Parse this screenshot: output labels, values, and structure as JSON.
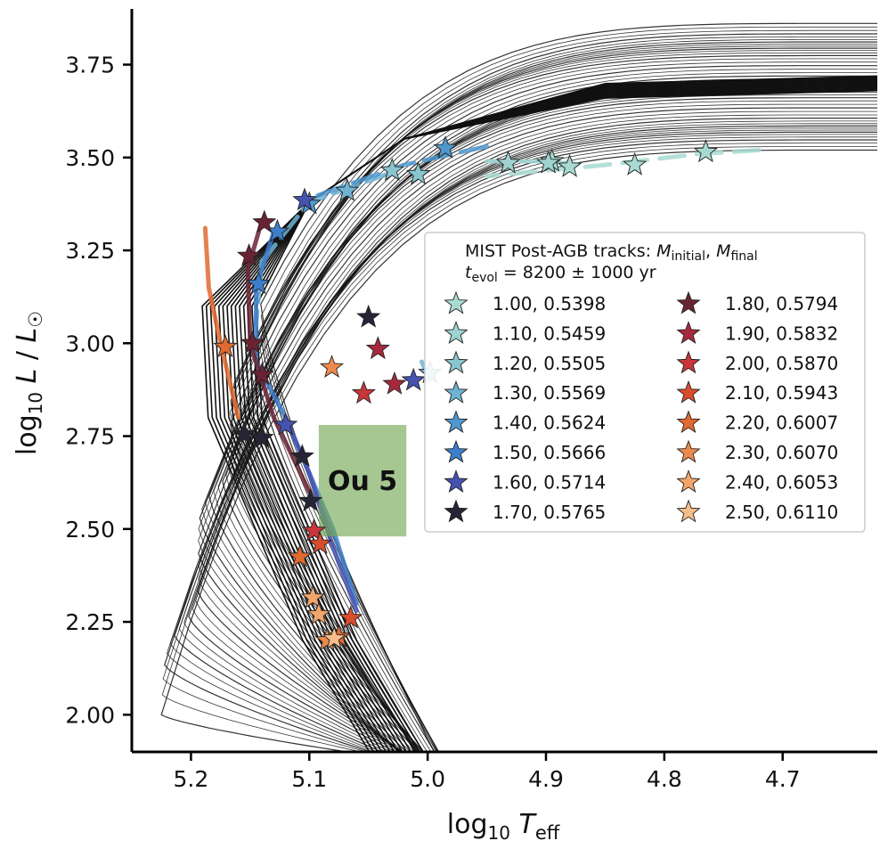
{
  "chart_data": {
    "type": "scatter",
    "xlabel": "log10 Teff",
    "ylabel": "log10 L / L☉",
    "xlim": [
      5.25,
      4.62
    ],
    "ylim": [
      1.9,
      3.9
    ],
    "x_inverted": true,
    "xticks": [
      5.2,
      5.1,
      5.0,
      4.9,
      4.8,
      4.7
    ],
    "xtick_labels": [
      "5.2",
      "5.1",
      "5.0",
      "4.9",
      "4.8",
      "4.7"
    ],
    "yticks": [
      2.0,
      2.25,
      2.5,
      2.75,
      3.0,
      3.25,
      3.5,
      3.75
    ],
    "ytick_labels": [
      "2.00",
      "2.25",
      "2.50",
      "2.75",
      "3.00",
      "3.25",
      "3.50",
      "3.75"
    ],
    "legend": {
      "title_line1_prefix": "MIST Post-AGB tracks: ",
      "title_m": "M",
      "title_initial": "initial",
      "title_sep": ", ",
      "title_final": "final",
      "title_t": "t",
      "title_evol": "evol",
      "title_line2_suffix": " = 8200 ± 1000 yr",
      "position": "right"
    },
    "region": {
      "label": "Ou 5",
      "x_range": [
        5.092,
        5.018
      ],
      "y_range": [
        2.48,
        2.78
      ],
      "color": "#76a957"
    },
    "series": [
      {
        "name": "1.00, 0.5398",
        "color": "#a8dad2",
        "points": [
          [
            4.765,
            3.515
          ],
          [
            4.825,
            3.48
          ],
          [
            4.88,
            3.475
          ],
          [
            4.895,
            3.49
          ]
        ]
      },
      {
        "name": "1.10, 0.5459",
        "color": "#9ed3d1",
        "points": [
          [
            4.932,
            3.485
          ],
          [
            4.898,
            3.485
          ]
        ]
      },
      {
        "name": "1.20, 0.5505",
        "color": "#89c6d0",
        "points": [
          [
            5.008,
            3.455
          ],
          [
            5.03,
            3.465
          ]
        ]
      },
      {
        "name": "1.30, 0.5569",
        "color": "#6fb3d2",
        "points": [
          [
            5.068,
            3.41
          ],
          [
            4.998,
            2.92
          ]
        ]
      },
      {
        "name": "1.40, 0.5624",
        "color": "#4f98cf",
        "points": [
          [
            4.985,
            3.525
          ],
          [
            5.1,
            3.375
          ]
        ]
      },
      {
        "name": "1.50, 0.5666",
        "color": "#3d7ecb",
        "points": [
          [
            5.127,
            3.3
          ],
          [
            5.143,
            3.16
          ]
        ]
      },
      {
        "name": "1.60, 0.5714",
        "color": "#4652b0",
        "points": [
          [
            5.104,
            3.385
          ],
          [
            5.12,
            2.78
          ],
          [
            5.012,
            2.9
          ]
        ]
      },
      {
        "name": "1.70, 0.5765",
        "color": "#252535",
        "points": [
          [
            5.155,
            2.755
          ],
          [
            5.14,
            2.745
          ],
          [
            5.106,
            2.695
          ],
          [
            5.099,
            2.575
          ],
          [
            5.05,
            3.07
          ]
        ]
      },
      {
        "name": "1.80, 0.5794",
        "color": "#6b2334",
        "points": [
          [
            5.138,
            3.325
          ],
          [
            5.151,
            3.235
          ],
          [
            5.148,
            3.0
          ],
          [
            5.14,
            2.915
          ]
        ]
      },
      {
        "name": "1.90, 0.5832",
        "color": "#a62a3c",
        "points": [
          [
            5.042,
            2.985
          ],
          [
            5.028,
            2.89
          ]
        ]
      },
      {
        "name": "2.00, 0.5870",
        "color": "#c8363a",
        "points": [
          [
            5.054,
            2.865
          ],
          [
            5.096,
            2.495
          ]
        ]
      },
      {
        "name": "2.10, 0.5943",
        "color": "#da4d2c",
        "points": [
          [
            5.091,
            2.46
          ],
          [
            5.065,
            2.26
          ]
        ]
      },
      {
        "name": "2.20, 0.6007",
        "color": "#e16a30",
        "points": [
          [
            5.171,
            2.99
          ],
          [
            5.108,
            2.425
          ],
          [
            5.075,
            2.21
          ]
        ]
      },
      {
        "name": "2.30, 0.6070",
        "color": "#ec8a4d",
        "points": [
          [
            5.081,
            2.935
          ],
          [
            5.085,
            2.2
          ]
        ]
      },
      {
        "name": "2.40, 0.6053",
        "color": "#f3a56a",
        "points": [
          [
            5.097,
            2.315
          ],
          [
            5.092,
            2.27
          ]
        ]
      },
      {
        "name": "2.50, 0.6110",
        "color": "#f6bd8b",
        "points": [
          [
            5.079,
            2.205
          ]
        ]
      }
    ]
  }
}
